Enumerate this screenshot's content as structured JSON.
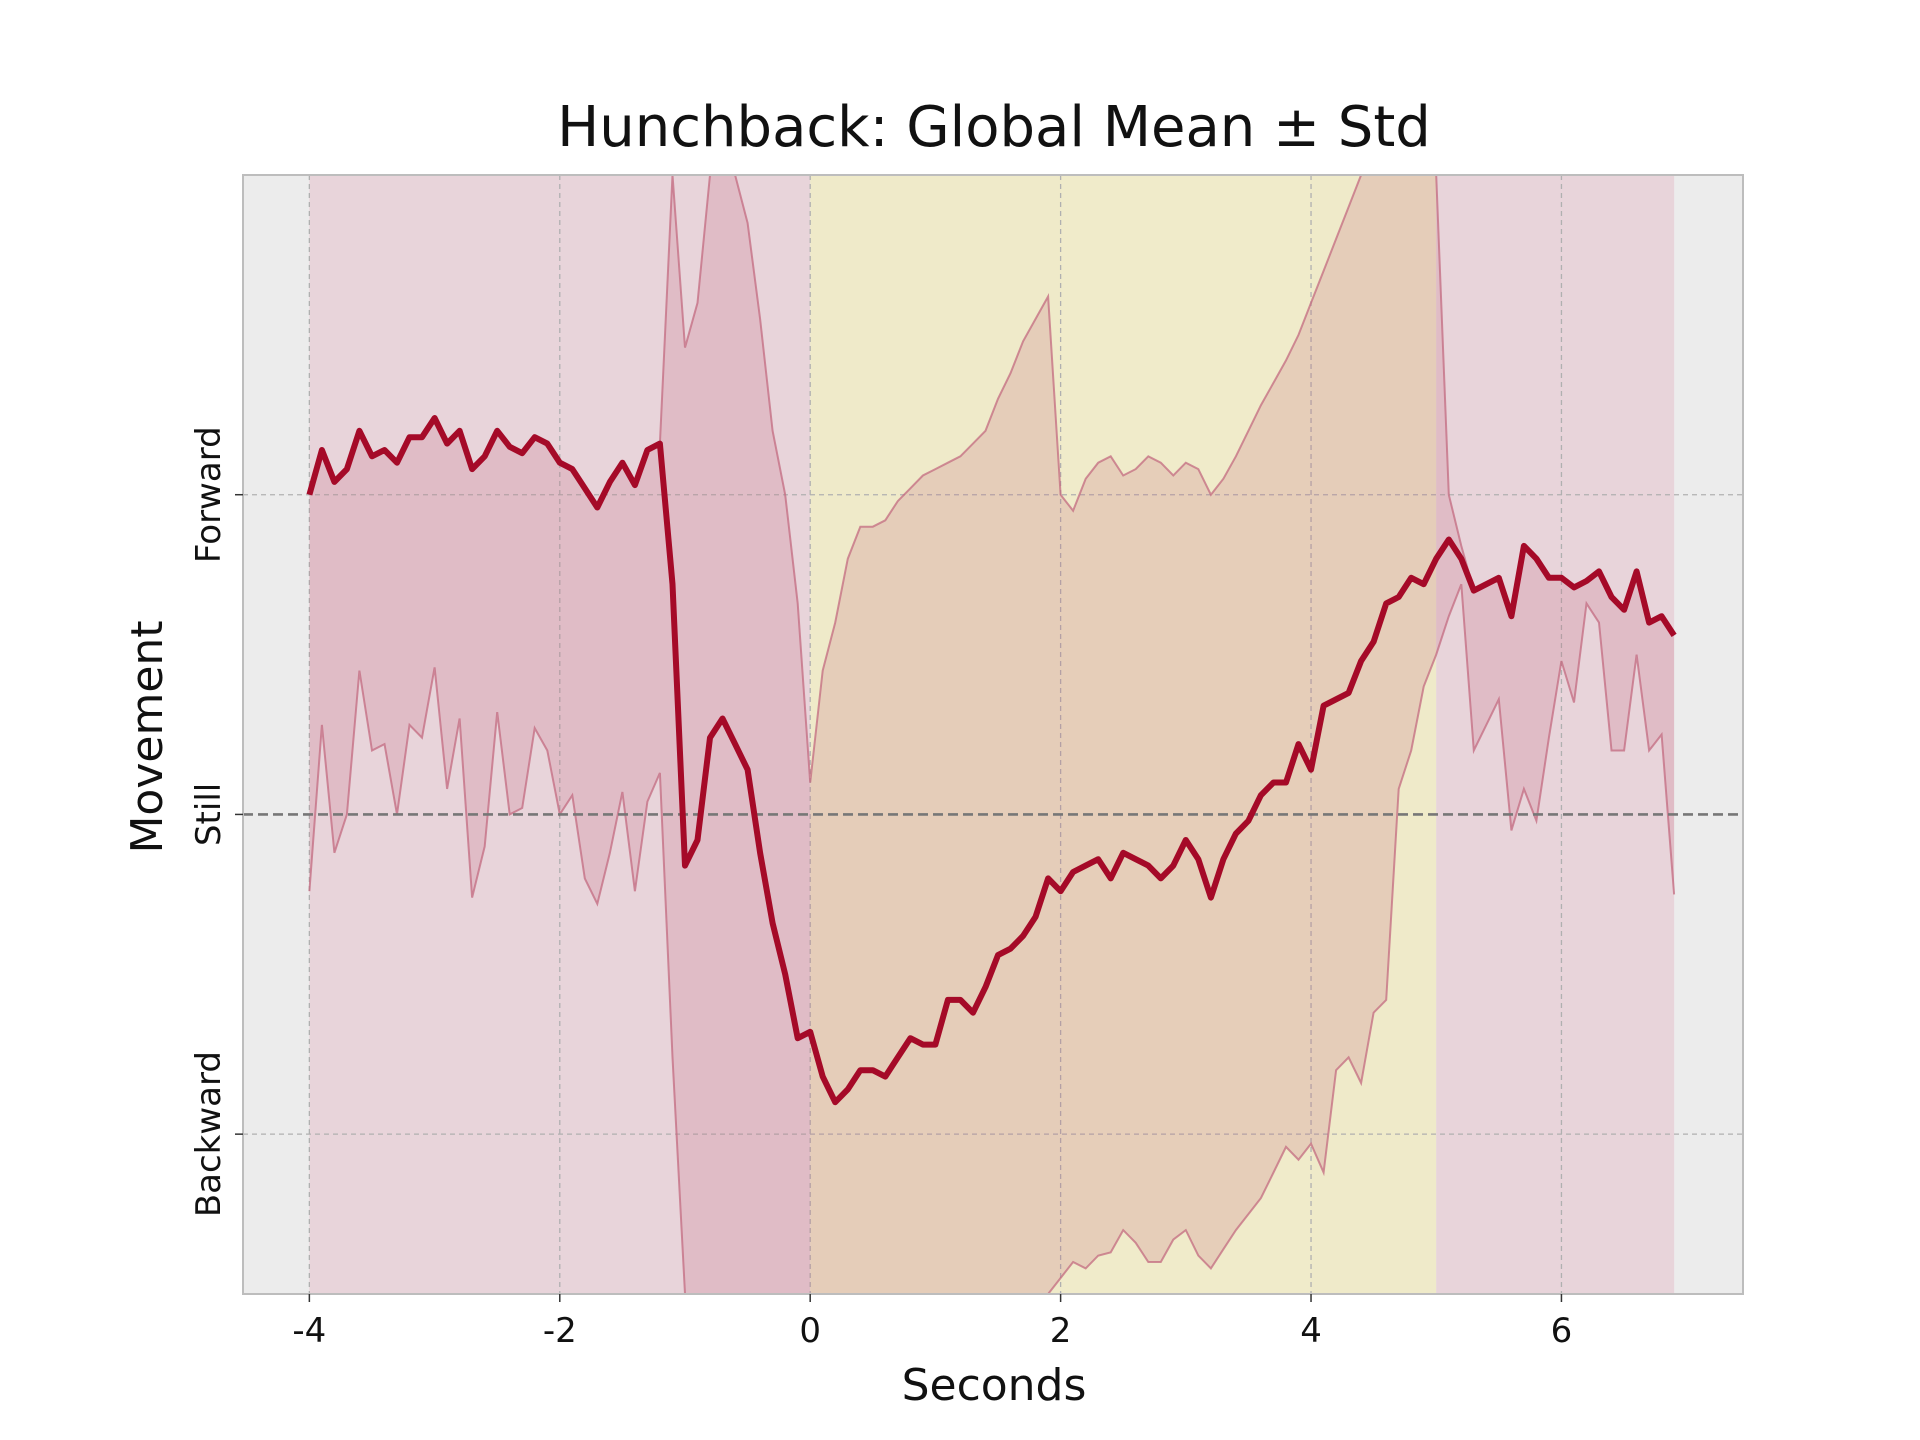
{
  "chart_data": {
    "type": "line",
    "title": "Hunchback: Global Mean ± Std",
    "xlabel": "Seconds",
    "ylabel": "Movement",
    "xlim": [
      -4.53,
      7.45
    ],
    "ylim": [
      -1.5,
      2.0
    ],
    "x_ticks": [
      "-4",
      "-2",
      "0",
      "2",
      "4",
      "6"
    ],
    "x_tick_values": [
      -4,
      -2,
      0,
      2,
      4,
      6
    ],
    "y_category_ticks": [
      {
        "label": "Forward",
        "value": 1
      },
      {
        "label": "Still",
        "value": 0
      },
      {
        "label": "Backward",
        "value": -1
      }
    ],
    "grid": true,
    "still_reference_line": 0,
    "shaded_regions": [
      {
        "x0": -4,
        "x1": 0,
        "color": "#e8d4da"
      },
      {
        "x0": 0,
        "x1": 5,
        "color": "#efeac9"
      },
      {
        "x0": 5,
        "x1": 6.9,
        "color": "#e8d4da"
      },
      {
        "x0": 2,
        "x1": 4,
        "color": "#f0ebca"
      }
    ],
    "colors": {
      "mean_line": "#a50a28",
      "std_band": "#c36b80",
      "background": "#ececec",
      "reference": "#777777"
    },
    "series": [
      {
        "x": [
          -4.0,
          -3.9,
          -3.8,
          -3.7,
          -3.6,
          -3.5,
          -3.4,
          -3.3,
          -3.2,
          -3.1,
          -3.0,
          -2.9,
          -2.8,
          -2.7,
          -2.6,
          -2.5,
          -2.4,
          -2.3,
          -2.2,
          -2.1,
          -2.0,
          -1.9,
          -1.8,
          -1.7,
          -1.6,
          -1.5,
          -1.4,
          -1.3,
          -1.2,
          -1.1,
          -1.0,
          -0.9,
          -0.8,
          -0.7,
          -0.6,
          -0.5,
          -0.4,
          -0.3,
          -0.2,
          -0.1,
          0.0,
          0.1,
          0.2,
          0.3,
          0.4,
          0.5,
          0.6,
          0.7,
          0.8,
          0.9,
          1.0,
          1.1,
          1.2,
          1.3,
          1.4,
          1.5,
          1.6,
          1.7,
          1.8,
          1.9,
          2.0,
          2.1,
          2.2,
          2.3,
          2.4,
          2.5,
          2.6,
          2.7,
          2.8,
          2.9,
          3.0,
          3.1,
          3.2,
          3.3,
          3.4,
          3.5,
          3.6,
          3.7,
          3.8,
          3.9,
          4.0,
          4.1,
          4.2,
          4.3,
          4.4,
          4.5,
          4.6,
          4.7,
          4.8,
          4.9,
          5.0,
          5.1,
          5.2,
          5.3,
          5.4,
          5.5,
          5.6,
          5.7,
          5.8,
          5.9,
          6.0,
          6.1,
          6.2,
          6.3,
          6.4,
          6.5,
          6.6,
          6.7,
          6.8,
          6.9
        ],
        "mean": [
          1.0,
          1.14,
          1.04,
          1.08,
          1.2,
          1.12,
          1.14,
          1.1,
          1.18,
          1.18,
          1.24,
          1.16,
          1.2,
          1.08,
          1.12,
          1.2,
          1.15,
          1.13,
          1.18,
          1.16,
          1.1,
          1.08,
          1.02,
          0.96,
          1.04,
          1.1,
          1.03,
          1.14,
          1.16,
          0.72,
          -0.16,
          -0.08,
          0.24,
          0.3,
          0.22,
          0.14,
          -0.12,
          -0.34,
          -0.5,
          -0.7,
          -0.68,
          -0.82,
          -0.9,
          -0.86,
          -0.8,
          -0.8,
          -0.82,
          -0.76,
          -0.7,
          -0.72,
          -0.72,
          -0.58,
          -0.58,
          -0.62,
          -0.54,
          -0.44,
          -0.42,
          -0.38,
          -0.32,
          -0.2,
          -0.24,
          -0.18,
          -0.16,
          -0.14,
          -0.2,
          -0.12,
          -0.14,
          -0.16,
          -0.2,
          -0.16,
          -0.08,
          -0.14,
          -0.26,
          -0.14,
          -0.06,
          -0.02,
          0.06,
          0.1,
          0.1,
          0.22,
          0.14,
          0.34,
          0.36,
          0.38,
          0.48,
          0.54,
          0.66,
          0.68,
          0.74,
          0.72,
          0.8,
          0.86,
          0.8,
          0.7,
          0.72,
          0.74,
          0.62,
          0.84,
          0.8,
          0.74,
          0.74,
          0.71,
          0.73,
          0.76,
          0.68,
          0.64,
          0.76,
          0.6,
          0.62,
          0.56
        ],
        "upper": [
          1.0,
          1.14,
          1.04,
          1.08,
          1.2,
          1.12,
          1.14,
          1.1,
          1.18,
          1.18,
          1.24,
          1.16,
          1.2,
          1.08,
          1.12,
          1.2,
          1.15,
          1.13,
          1.18,
          1.16,
          1.1,
          1.08,
          1.02,
          0.96,
          1.04,
          1.1,
          1.03,
          1.14,
          1.16,
          2.0,
          1.46,
          1.6,
          2.0,
          2.0,
          2.0,
          1.85,
          1.55,
          1.2,
          1.0,
          0.66,
          0.1,
          0.45,
          0.6,
          0.8,
          0.9,
          0.9,
          0.92,
          0.98,
          1.02,
          1.06,
          1.08,
          1.1,
          1.12,
          1.16,
          1.2,
          1.3,
          1.38,
          1.48,
          1.55,
          1.62,
          1.0,
          0.95,
          1.05,
          1.1,
          1.12,
          1.06,
          1.08,
          1.12,
          1.1,
          1.06,
          1.1,
          1.08,
          1.0,
          1.05,
          1.12,
          1.2,
          1.28,
          1.35,
          1.42,
          1.5,
          1.6,
          1.7,
          1.8,
          1.9,
          2.0,
          2.0,
          2.0,
          2.0,
          2.0,
          2.0,
          2.0,
          1.0,
          0.84,
          0.7,
          0.72,
          0.74,
          0.62,
          0.84,
          0.8,
          0.74,
          0.74,
          0.71,
          0.73,
          0.76,
          0.68,
          0.64,
          0.76,
          0.6,
          0.62,
          0.56
        ],
        "lower": [
          -0.24,
          0.28,
          -0.12,
          0.0,
          0.45,
          0.2,
          0.22,
          0.0,
          0.28,
          0.24,
          0.46,
          0.08,
          0.3,
          -0.26,
          -0.1,
          0.32,
          0.0,
          0.02,
          0.27,
          0.2,
          0.0,
          0.06,
          -0.2,
          -0.28,
          -0.12,
          0.07,
          -0.24,
          0.04,
          0.13,
          -0.76,
          -1.5,
          -1.5,
          -1.5,
          -1.5,
          -1.5,
          -1.5,
          -1.5,
          -1.5,
          -1.5,
          -1.5,
          -1.5,
          -1.5,
          -1.5,
          -1.5,
          -1.5,
          -1.5,
          -1.5,
          -1.5,
          -1.5,
          -1.5,
          -1.5,
          -1.5,
          -1.5,
          -1.5,
          -1.5,
          -1.5,
          -1.5,
          -1.5,
          -1.5,
          -1.5,
          -1.45,
          -1.4,
          -1.42,
          -1.38,
          -1.37,
          -1.3,
          -1.34,
          -1.4,
          -1.4,
          -1.33,
          -1.3,
          -1.38,
          -1.42,
          -1.36,
          -1.3,
          -1.25,
          -1.2,
          -1.12,
          -1.04,
          -1.08,
          -1.03,
          -1.12,
          -0.8,
          -0.76,
          -0.84,
          -0.62,
          -0.58,
          0.08,
          0.2,
          0.4,
          0.5,
          0.62,
          0.72,
          0.2,
          0.28,
          0.36,
          -0.05,
          0.08,
          -0.02,
          0.24,
          0.48,
          0.35,
          0.66,
          0.6,
          0.2,
          0.2,
          0.5,
          0.2,
          0.25,
          -0.25
        ]
      }
    ]
  }
}
